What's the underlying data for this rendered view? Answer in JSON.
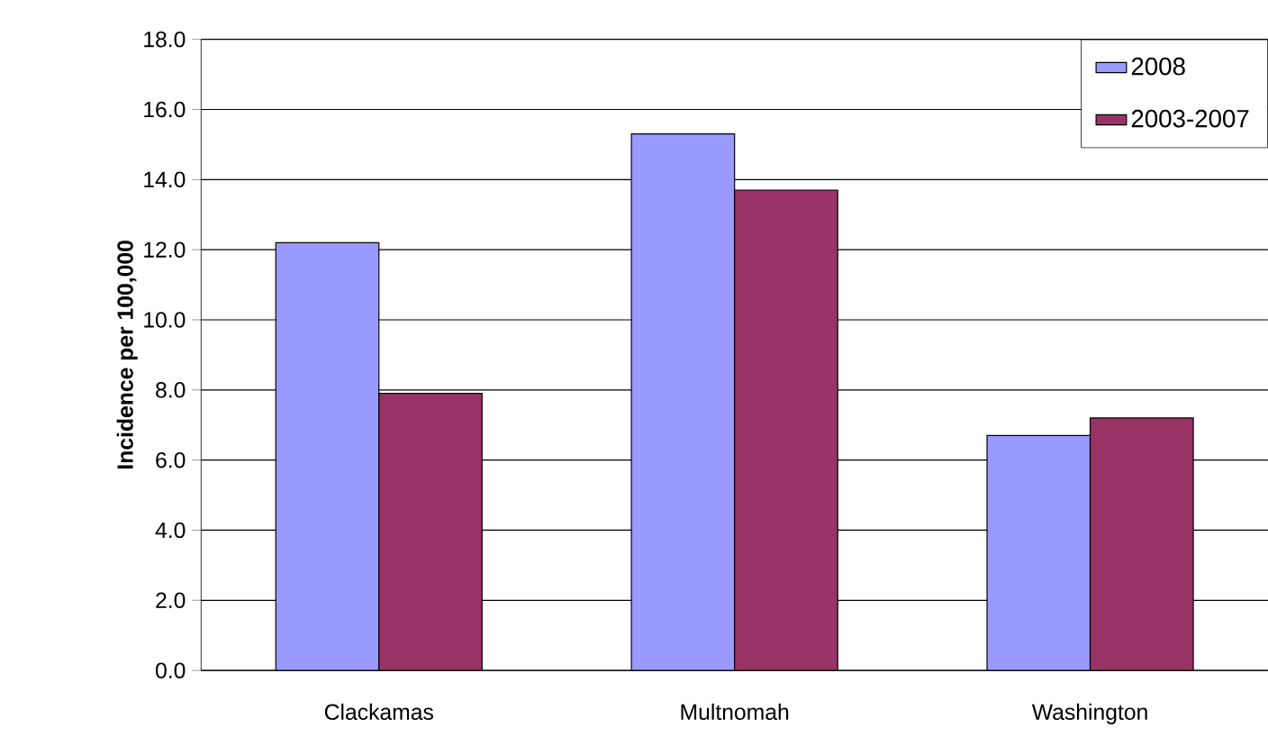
{
  "chart_data": {
    "type": "bar",
    "ylabel": "Incidence per 100,000",
    "categories": [
      "Clackamas",
      "Multnomah",
      "Washington"
    ],
    "series": [
      {
        "name": "2008",
        "color": "#9999ff",
        "values": [
          12.2,
          15.3,
          6.7
        ]
      },
      {
        "name": "2003-2007",
        "color": "#993366",
        "values": [
          7.9,
          13.7,
          7.2
        ]
      }
    ],
    "ylim": [
      0,
      18
    ],
    "yticks": [
      {
        "value": 0,
        "label": "0.0"
      },
      {
        "value": 2,
        "label": "2.0"
      },
      {
        "value": 4,
        "label": "4.0"
      },
      {
        "value": 6,
        "label": "6.0"
      },
      {
        "value": 8,
        "label": "8.0"
      },
      {
        "value": 10,
        "label": "10.0"
      },
      {
        "value": 12,
        "label": "12.0"
      },
      {
        "value": 14,
        "label": "14.0"
      },
      {
        "value": 16,
        "label": "16.0"
      },
      {
        "value": 18,
        "label": "18.0"
      }
    ],
    "grid": "y",
    "legend": "top right"
  }
}
